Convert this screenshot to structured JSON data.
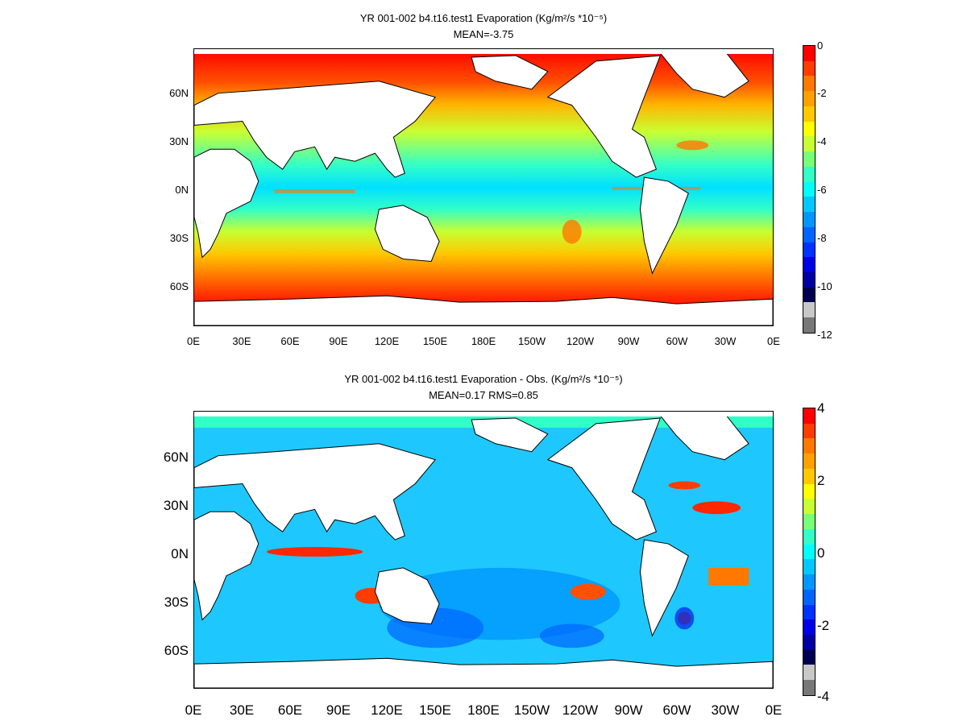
{
  "panels": [
    {
      "title": "YR 001-002 b4.t16.test1  Evaporation (Kg/m²/s *10⁻⁵)",
      "stats": "MEAN=-3.75",
      "y_ticks": [
        "60N",
        "30N",
        "0N",
        "30S",
        "60S"
      ],
      "x_ticks": [
        "0E",
        "30E",
        "60E",
        "90E",
        "120E",
        "150E",
        "180E",
        "150W",
        "120W",
        "90W",
        "60W",
        "30W",
        "0E"
      ],
      "colorbar": {
        "ticks": [
          "0",
          "-2",
          "-4",
          "-6",
          "-8",
          "-10",
          "-12"
        ],
        "colors": [
          "#ff0000",
          "#ff3c00",
          "#ff7800",
          "#ffa000",
          "#ffc800",
          "#ffff00",
          "#c8ff32",
          "#78ff78",
          "#32ffc8",
          "#00ffff",
          "#00c8ff",
          "#0096ff",
          "#0064ff",
          "#0032ff",
          "#0000e6",
          "#0000a0",
          "#000050",
          "#c8c8c8",
          "#787878"
        ]
      }
    },
    {
      "title": "YR 001-002 b4.t16.test1 Evaporation - Obs. (Kg/m²/s *10⁻⁵)",
      "stats": "MEAN=0.17   RMS=0.85",
      "y_ticks": [
        "60N",
        "30N",
        "0N",
        "30S",
        "60S"
      ],
      "x_ticks": [
        "0E",
        "30E",
        "60E",
        "90E",
        "120E",
        "150E",
        "180E",
        "150W",
        "120W",
        "90W",
        "60W",
        "30W",
        "0E"
      ],
      "colorbar": {
        "ticks": [
          "4",
          "2",
          "0",
          "-2",
          "-4"
        ],
        "colors": [
          "#ff0000",
          "#ff3c00",
          "#ff7800",
          "#ffa000",
          "#ffc800",
          "#ffff00",
          "#c8ff32",
          "#78ff78",
          "#32ffc8",
          "#00ffff",
          "#00c8ff",
          "#0096ff",
          "#0064ff",
          "#0032ff",
          "#0000e6",
          "#0000a0",
          "#000050",
          "#c8c8c8",
          "#787878"
        ]
      }
    }
  ]
}
